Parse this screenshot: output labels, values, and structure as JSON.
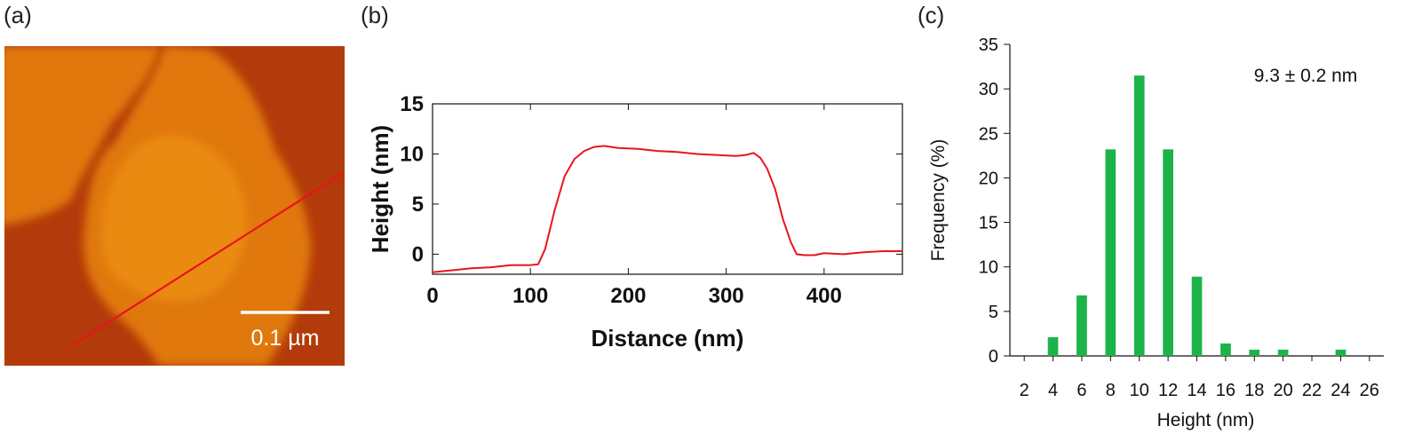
{
  "panels": {
    "a": {
      "label": "(a)",
      "scale_bar_text": "0.1 µm",
      "colors": {
        "background": "#b33a0a",
        "terrace": "#e0780f",
        "grain": "#f29a14",
        "profile_line": "#e8141e",
        "scale_bar": "#ffffff"
      }
    },
    "b": {
      "label": "(b)"
    },
    "c": {
      "label": "(c)"
    }
  },
  "chart_data": [
    {
      "type": "line",
      "xlabel": "Distance (nm)",
      "ylabel": "Height (nm)",
      "xlim": [
        0,
        480
      ],
      "ylim": [
        -2,
        15
      ],
      "xticks": [
        0,
        100,
        200,
        300,
        400
      ],
      "yticks": [
        0,
        5,
        10,
        15
      ],
      "grid": false,
      "color": "#e8141e",
      "x": [
        0,
        20,
        40,
        60,
        80,
        100,
        108,
        115,
        125,
        135,
        145,
        155,
        165,
        175,
        190,
        210,
        230,
        250,
        270,
        290,
        310,
        320,
        328,
        335,
        342,
        350,
        358,
        366,
        372,
        380,
        390,
        400,
        420,
        440,
        460,
        480
      ],
      "y": [
        -1.8,
        -1.6,
        -1.4,
        -1.3,
        -1.1,
        -1.1,
        -1.0,
        0.5,
        4.5,
        7.8,
        9.5,
        10.3,
        10.7,
        10.8,
        10.6,
        10.5,
        10.3,
        10.2,
        10.0,
        9.9,
        9.8,
        9.9,
        10.1,
        9.6,
        8.5,
        6.5,
        3.5,
        1.2,
        0.0,
        -0.1,
        -0.1,
        0.1,
        0.0,
        0.2,
        0.3,
        0.3
      ]
    },
    {
      "type": "bar",
      "xlabel": "Height (nm)",
      "ylabel": "Frequency (%)",
      "annotation": "9.3 ± 0.2 nm",
      "xlim": [
        1,
        27
      ],
      "ylim": [
        0,
        35
      ],
      "xticks": [
        2,
        4,
        6,
        8,
        10,
        12,
        14,
        16,
        18,
        20,
        22,
        24,
        26
      ],
      "yticks": [
        0,
        5,
        10,
        15,
        20,
        25,
        30,
        35
      ],
      "color": "#1db34a",
      "categories": [
        4,
        6,
        8,
        10,
        12,
        14,
        16,
        18,
        20,
        24
      ],
      "values": [
        2.1,
        6.8,
        23.2,
        31.5,
        23.2,
        8.9,
        1.4,
        0.7,
        0.7,
        0.7
      ]
    }
  ]
}
